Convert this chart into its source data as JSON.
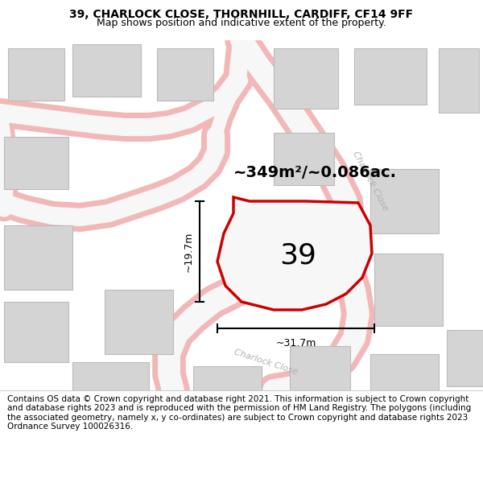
{
  "title_line1": "39, CHARLOCK CLOSE, THORNHILL, CARDIFF, CF14 9FF",
  "title_line2": "Map shows position and indicative extent of the property.",
  "footer_text": "Contains OS data © Crown copyright and database right 2021. This information is subject to Crown copyright and database rights 2023 and is reproduced with the permission of HM Land Registry. The polygons (including the associated geometry, namely x, y co-ordinates) are subject to Crown copyright and database rights 2023 Ordnance Survey 100026316.",
  "map_bg": "#f7f7f7",
  "title_bg": "#ffffff",
  "footer_bg": "#ffffff",
  "road_outer_color": "#f2b8b8",
  "road_inner_color": "#f7f7f7",
  "block_fill": "#d4d4d4",
  "block_edge": "#bbbbbb",
  "main_polygon_fill": "#f7f7f7",
  "main_polygon_edge": "#cc0000",
  "main_polygon_edge_width": 2.5,
  "area_text": "~349m²/~0.086ac.",
  "label_39": "39",
  "dim_width": "~31.7m",
  "dim_height": "~19.7m",
  "street_label_upper": "Charlock Close",
  "street_label_lower": "Charlock Close",
  "title_fontsize": 10,
  "subtitle_fontsize": 9,
  "footer_fontsize": 7.5
}
